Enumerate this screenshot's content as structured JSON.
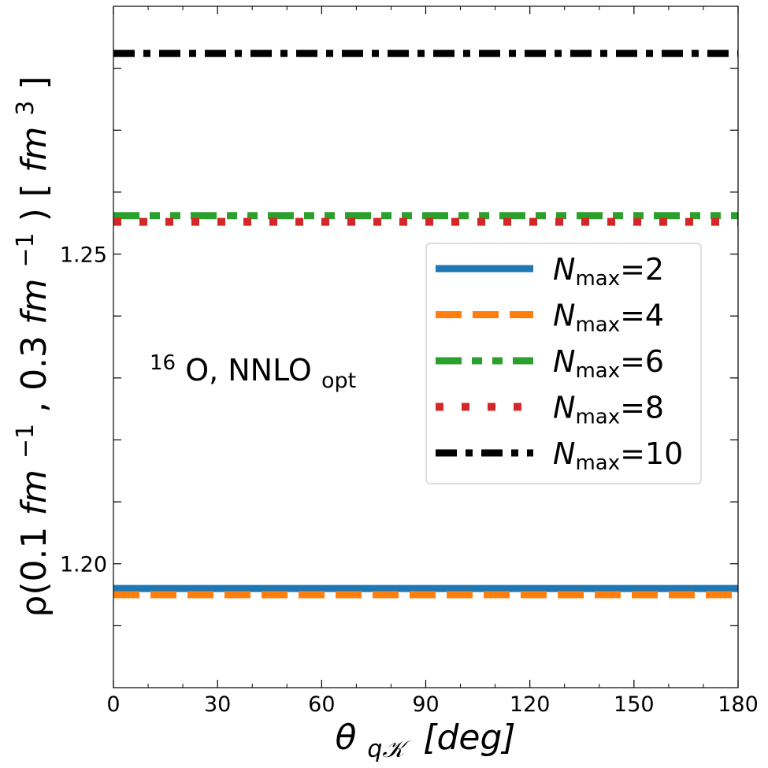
{
  "chart_data": {
    "type": "line",
    "title": "",
    "annotation": {
      "nucleus": "16",
      "element": "O, NNLO",
      "sub": "opt"
    },
    "xlabel": {
      "symbol": "θ",
      "sub": "q𝒦",
      "unit": "[deg]"
    },
    "ylabel": {
      "prefix": "ρ(0.1",
      "unit1": "fm",
      "exp1": "−1",
      "mid": ", 0.3",
      "unit2": "fm",
      "exp2": "−1",
      "close": ") [",
      "unit3": "fm",
      "exp3": "3",
      "end": "]"
    },
    "xlim": [
      0,
      180
    ],
    "ylim": [
      1.18,
      1.29
    ],
    "xticks": [
      0,
      30,
      60,
      90,
      120,
      150,
      180
    ],
    "xtick_labels": [
      "0",
      "30",
      "60",
      "90",
      "120",
      "150",
      "180"
    ],
    "yticks": [
      1.2,
      1.25
    ],
    "ytick_labels": [
      "1.20",
      "1.25"
    ],
    "legend_position": "center-right",
    "series": [
      {
        "name": "N",
        "sub": "max",
        "value_label": "=2",
        "x": [
          0,
          180
        ],
        "y": [
          1.196,
          1.196
        ],
        "color": "#1f77b4",
        "style": "solid"
      },
      {
        "name": "N",
        "sub": "max",
        "value_label": "=4",
        "x": [
          0,
          180
        ],
        "y": [
          1.195,
          1.195
        ],
        "color": "#ff7f0e",
        "style": "dashed"
      },
      {
        "name": "N",
        "sub": "max",
        "value_label": "=6",
        "x": [
          0,
          180
        ],
        "y": [
          1.2562,
          1.2562
        ],
        "color": "#2ca02c",
        "style": "dashdotdot"
      },
      {
        "name": "N",
        "sub": "max",
        "value_label": "=8",
        "x": [
          0,
          180
        ],
        "y": [
          1.2552,
          1.2552
        ],
        "color": "#d62728",
        "style": "dotted"
      },
      {
        "name": "N",
        "sub": "max",
        "value_label": "=10",
        "x": [
          0,
          180
        ],
        "y": [
          1.2824,
          1.2824
        ],
        "color": "#000000",
        "style": "dashdot"
      }
    ]
  }
}
